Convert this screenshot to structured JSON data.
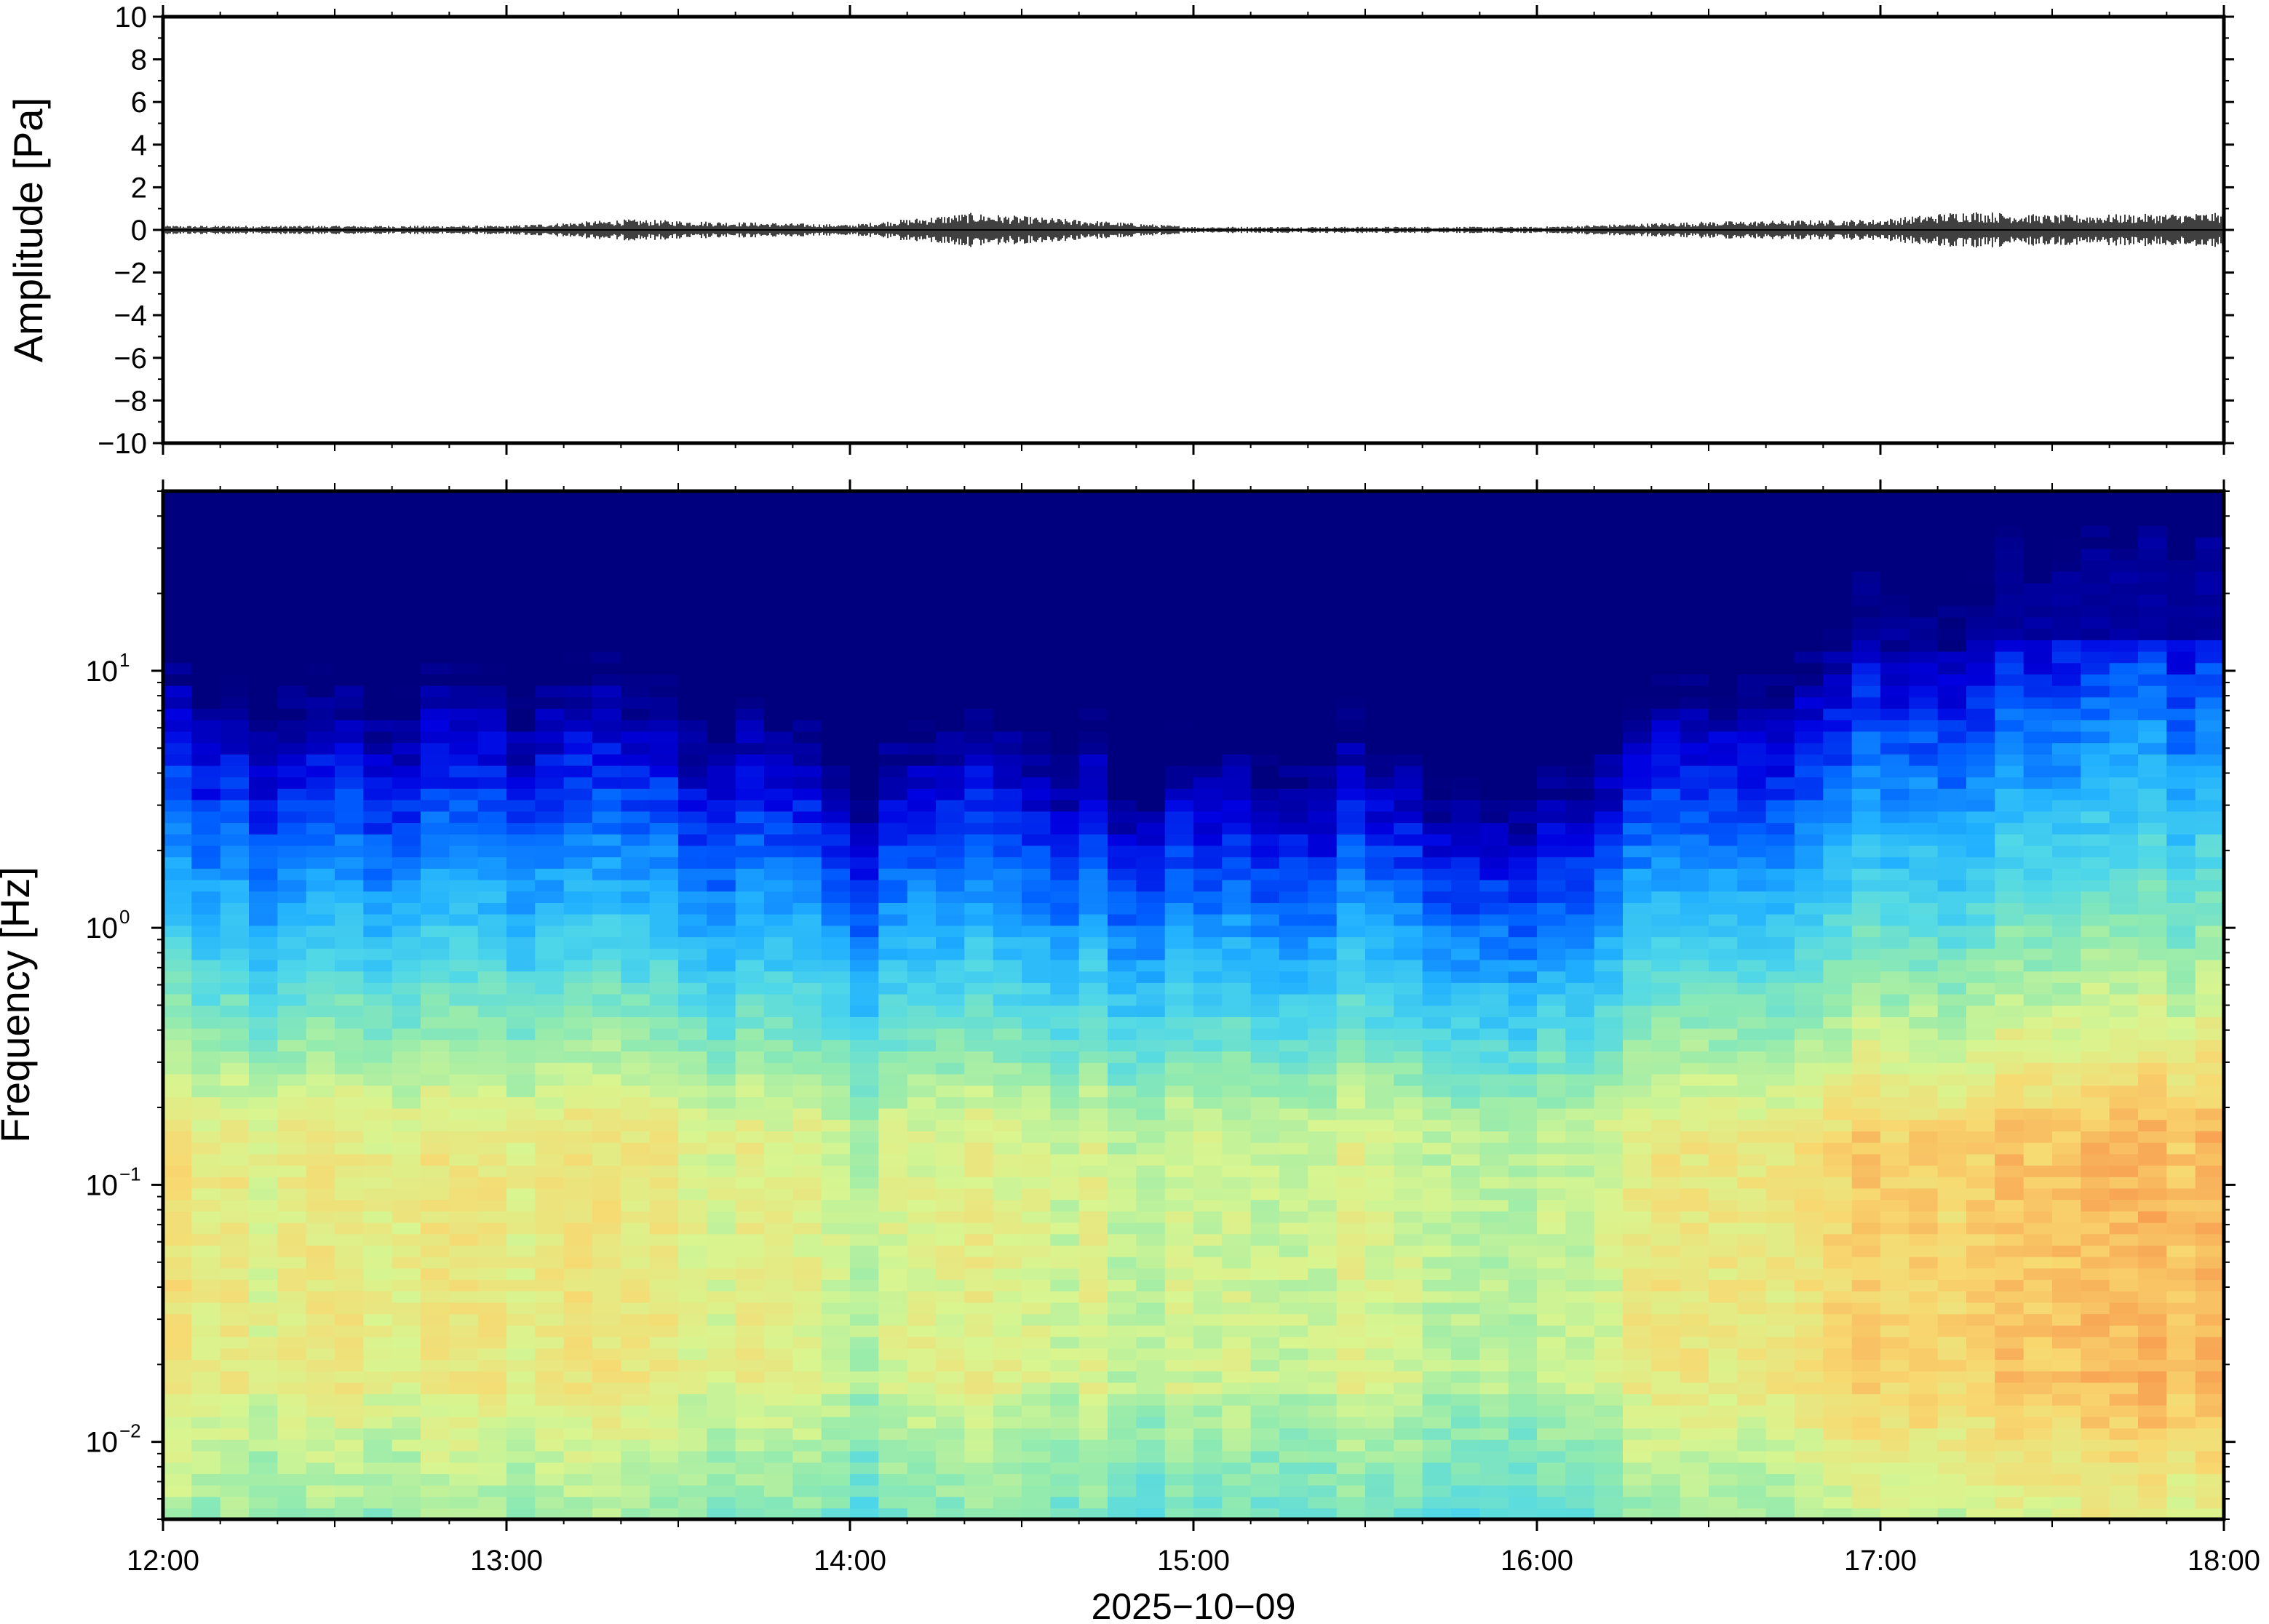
{
  "chart_data": [
    {
      "type": "line",
      "panel": "waveform",
      "ylabel": "Amplitude [Pa]",
      "ylim": [
        -10,
        10
      ],
      "yticks": [
        10,
        8,
        6,
        4,
        2,
        0,
        -2,
        -4,
        -6,
        -8,
        -10
      ],
      "ytick_labels": [
        "10",
        "8",
        "6",
        "4",
        "2",
        "0",
        "−2",
        "−4",
        "−6",
        "−8",
        "−10"
      ],
      "xlim": [
        "12:00",
        "18:00"
      ],
      "series": [
        {
          "x_hours": [
            12.0,
            13.0,
            13.35,
            14.0,
            14.35,
            15.0,
            16.0,
            16.5,
            17.0,
            17.25,
            17.5,
            18.0
          ],
          "envelope": [
            0.2,
            0.2,
            0.5,
            0.25,
            0.8,
            0.15,
            0.15,
            0.4,
            0.5,
            0.9,
            0.7,
            0.8
          ]
        }
      ],
      "grid": false
    },
    {
      "type": "heatmap",
      "panel": "spectrogram",
      "ylabel": "Frequency [Hz]",
      "yscale": "log",
      "ylim": [
        0.005,
        50
      ],
      "yticks": [
        0.01,
        0.1,
        1,
        10
      ],
      "ytick_labels": [
        {
          "base": "10",
          "exp": "−2"
        },
        {
          "base": "10",
          "exp": "−1"
        },
        {
          "base": "10",
          "exp": "0"
        },
        {
          "base": "10",
          "exp": "1"
        }
      ],
      "xlabel": "2025−10−09",
      "xticks": [
        "12:00",
        "13:00",
        "14:00",
        "15:00",
        "16:00",
        "17:00",
        "18:00"
      ],
      "colormap": [
        "#00007f",
        "#0000e0",
        "#0060ff",
        "#20b0ff",
        "#50d8e8",
        "#90eab0",
        "#d8f590",
        "#f8d870",
        "#f8a050",
        "#f06030"
      ],
      "energy_profile": {
        "x_hours": [
          12.0,
          12.5,
          13.0,
          13.35,
          13.5,
          13.75,
          14.0,
          14.35,
          14.75,
          15.0,
          15.5,
          15.9,
          16.25,
          16.5,
          17.0,
          17.5,
          18.0
        ],
        "level": [
          0.55,
          0.5,
          0.52,
          0.6,
          0.45,
          0.5,
          0.35,
          0.55,
          0.4,
          0.4,
          0.45,
          0.3,
          0.5,
          0.55,
          0.65,
          0.72,
          0.75
        ]
      },
      "grid": false
    }
  ]
}
